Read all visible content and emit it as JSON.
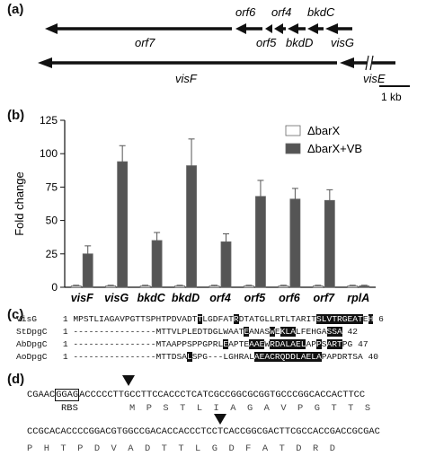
{
  "panels": {
    "a": "(a)",
    "b": "(b)",
    "c": "(c)",
    "d": "(d)"
  },
  "map": {
    "row1_genes": [
      "orf7",
      "orf6",
      "orf4",
      "bkdC",
      "orf5",
      "bkdD",
      "visG"
    ],
    "row2_genes": [
      "visF",
      "visE"
    ],
    "scale_label": "1 kb"
  },
  "chart_data": {
    "type": "bar",
    "ylabel": "Fold change",
    "ylim": [
      0,
      125
    ],
    "yticks": [
      0,
      25,
      50,
      75,
      100,
      125
    ],
    "categories": [
      "visF",
      "visG",
      "bkdC",
      "bkdD",
      "orf4",
      "orf5",
      "orf6",
      "orf7",
      "rplA"
    ],
    "series": [
      {
        "name": "ΔbarX",
        "color": "#ffffff",
        "values": [
          1,
          1,
          1,
          1,
          1,
          1,
          1,
          1,
          1
        ],
        "errors": [
          0.5,
          0.5,
          0.5,
          0.5,
          0.5,
          0.5,
          0.5,
          0.5,
          0.5
        ]
      },
      {
        "name": "ΔbarX+VB",
        "color": "#555555",
        "values": [
          25,
          94,
          35,
          91,
          34,
          68,
          66,
          65,
          1
        ],
        "errors": [
          6,
          12,
          6,
          20,
          6,
          12,
          8,
          8,
          0.5
        ]
      }
    ],
    "legend": "top-right"
  },
  "alignment": [
    {
      "name": "VisG",
      "pre": "MPSTLIAGAVPGTTSPHTPDVADT",
      "segs": [
        [
          "T",
          1
        ],
        [
          "LGDFAT",
          0
        ],
        [
          "R",
          1
        ],
        [
          "DTATGLLRTLTARIT",
          0
        ],
        [
          "SLVTRGEAT",
          1
        ],
        [
          "E",
          0
        ],
        [
          "H",
          1
        ],
        [
          " 6",
          0
        ]
      ]
    },
    {
      "name": "StDpgC",
      "pre": "----------------MTTVLPLEDT",
      "segs": [
        [
          "DGLWAAT",
          0
        ],
        [
          "E",
          1
        ],
        [
          "ANAS",
          0
        ],
        [
          "W",
          1
        ],
        [
          "E",
          0
        ],
        [
          "KLA",
          1
        ],
        [
          "LFEHGA",
          0
        ],
        [
          "SSA",
          1
        ],
        [
          " 42",
          0
        ]
      ]
    },
    {
      "name": "AbDpgC",
      "pre": "----------------MTAAPPSPPGPRL",
      "segs": [
        [
          "E",
          1
        ],
        [
          "APTE",
          0
        ],
        [
          "AAE",
          1
        ],
        [
          "W",
          0
        ],
        [
          "RDALAEL",
          1
        ],
        [
          "AP",
          0
        ],
        [
          "P",
          1
        ],
        [
          "S",
          0
        ],
        [
          "ART",
          1
        ],
        [
          "PG",
          0
        ],
        [
          " 47",
          0
        ]
      ]
    },
    {
      "name": "AoDpgC",
      "pre": "----------------MTTDSA",
      "segs": [
        [
          "L",
          1
        ],
        [
          "SPG---LGHRAL",
          0
        ],
        [
          "AEACRQ",
          1
        ],
        [
          "DDLAELA",
          1
        ],
        [
          "PAPDRTSA",
          0
        ],
        [
          " 40",
          0
        ]
      ]
    }
  ],
  "sequence": {
    "line1_pre": "CGAAC",
    "rbs": "GGAG",
    "line1_post": "ACCCCCTTGCCTTCCACCCTCATCGCCGGCGCGGTGCCCGGCACCACTTCC",
    "aa1": "M  P  S  T  L  I  A  G  A  V  P  G  T  T  S",
    "line2": "CCGCACACCCCGGACGTGGCCGACACCACCCTCCTCACCGGCGACTTCGCCACCGACCGCGAC",
    "aa2": "P  H  T  P  D  V  A  D  T  T  L  G  D  F  A  T  D  R  D",
    "rbs_label": "RBS"
  }
}
